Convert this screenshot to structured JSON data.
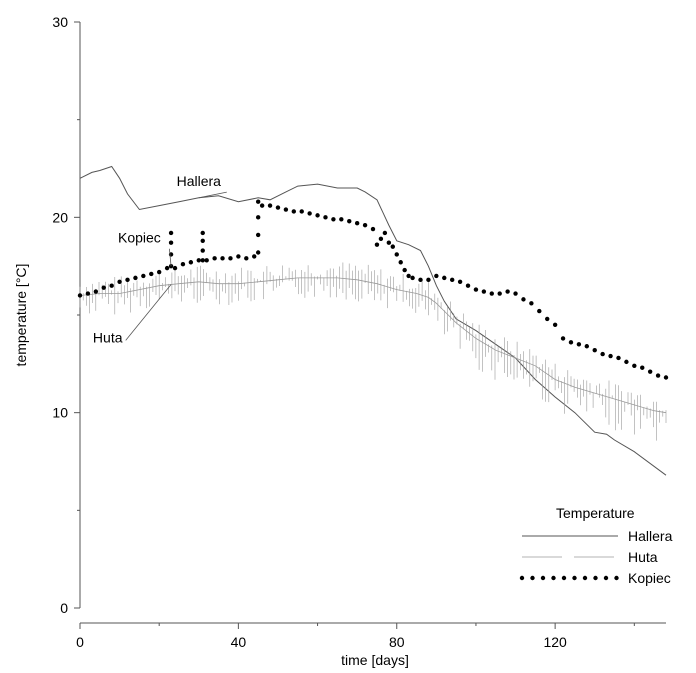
{
  "chart_data": {
    "type": "line",
    "title": "",
    "xlabel": "time [days]",
    "ylabel": "temperature [°C]",
    "xlim": [
      0,
      148
    ],
    "ylim": [
      0,
      30
    ],
    "x_ticks": [
      0,
      40,
      80,
      120
    ],
    "y_ticks": [
      0,
      10,
      20,
      30
    ],
    "grid": false,
    "legend": {
      "title": "Temperature",
      "position": "bottom-right",
      "entries": [
        "Hallera",
        "Huta",
        "Kopiec"
      ]
    },
    "annotations": [
      {
        "text": "Hallera",
        "series": "Hallera",
        "at": [
          30,
          21.6
        ]
      },
      {
        "text": "Kopiec",
        "series": "Kopiec",
        "at": [
          15,
          18.7
        ]
      },
      {
        "text": "Huta",
        "series": "Huta",
        "at": [
          7,
          13.6
        ]
      }
    ],
    "series": [
      {
        "name": "Hallera",
        "style": "thin-solid",
        "color": "#555555",
        "x": [
          0,
          3,
          5,
          8,
          10,
          12,
          15,
          20,
          25,
          30,
          35,
          40,
          45,
          48,
          52,
          55,
          60,
          65,
          70,
          72,
          75,
          78,
          80,
          83,
          86,
          88,
          90,
          92,
          95,
          100,
          105,
          110,
          115,
          120,
          125,
          130,
          133,
          135,
          140,
          148
        ],
        "y": [
          22.0,
          22.3,
          22.4,
          22.6,
          22.0,
          21.2,
          20.4,
          20.6,
          20.8,
          21.0,
          21.1,
          20.8,
          21.0,
          20.9,
          21.3,
          21.6,
          21.7,
          21.5,
          21.5,
          21.3,
          20.9,
          19.6,
          18.8,
          18.6,
          18.3,
          17.5,
          16.5,
          15.7,
          14.8,
          14.2,
          13.5,
          12.8,
          11.7,
          10.8,
          10.0,
          9.0,
          8.9,
          8.6,
          8.0,
          6.8
        ]
      },
      {
        "name": "Huta",
        "style": "thin-spiky",
        "color": "#9a9a9a",
        "x": [
          0,
          5,
          10,
          15,
          20,
          25,
          30,
          35,
          40,
          45,
          50,
          55,
          60,
          65,
          70,
          75,
          80,
          85,
          88,
          90,
          92,
          95,
          100,
          105,
          110,
          115,
          120,
          125,
          130,
          135,
          140,
          145,
          148
        ],
        "y": [
          16.0,
          16.1,
          16.1,
          16.3,
          16.5,
          16.6,
          16.7,
          16.6,
          16.6,
          16.7,
          16.8,
          16.9,
          16.9,
          16.9,
          16.8,
          16.6,
          16.3,
          16.1,
          15.9,
          15.6,
          15.2,
          14.6,
          13.8,
          13.2,
          12.8,
          12.4,
          11.7,
          11.3,
          11.0,
          10.7,
          10.4,
          10.1,
          10.0
        ]
      },
      {
        "name": "Kopiec",
        "style": "dotted",
        "color": "#000000",
        "x": [
          0,
          2,
          4,
          6,
          8,
          10,
          12,
          14,
          16,
          18,
          20,
          22,
          23,
          23,
          23,
          23,
          24,
          26,
          28,
          30,
          31,
          31,
          31,
          31,
          32,
          34,
          36,
          38,
          40,
          42,
          44,
          45,
          45,
          45,
          45,
          46,
          48,
          50,
          52,
          54,
          56,
          58,
          60,
          62,
          64,
          66,
          68,
          70,
          72,
          74,
          75,
          76,
          77,
          78,
          79,
          80,
          81,
          82,
          83,
          84,
          86,
          88,
          90,
          92,
          94,
          96,
          98,
          100,
          102,
          104,
          106,
          108,
          110,
          112,
          114,
          116,
          118,
          120,
          122,
          124,
          126,
          128,
          130,
          132,
          134,
          136,
          138,
          140,
          142,
          144,
          146,
          148
        ],
        "y": [
          16.0,
          16.1,
          16.2,
          16.4,
          16.5,
          16.7,
          16.8,
          16.9,
          17.0,
          17.1,
          17.2,
          17.4,
          17.5,
          18.1,
          18.7,
          19.2,
          17.4,
          17.6,
          17.7,
          17.8,
          18.3,
          18.8,
          19.2,
          17.8,
          17.8,
          17.9,
          17.9,
          17.9,
          18.0,
          17.9,
          18.0,
          18.2,
          19.1,
          20.0,
          20.8,
          20.6,
          20.6,
          20.5,
          20.4,
          20.3,
          20.3,
          20.2,
          20.1,
          20.0,
          19.9,
          19.9,
          19.8,
          19.7,
          19.6,
          19.4,
          18.6,
          18.9,
          19.2,
          18.7,
          18.5,
          18.1,
          17.7,
          17.3,
          17.0,
          16.9,
          16.8,
          16.8,
          17.0,
          16.9,
          16.8,
          16.7,
          16.5,
          16.3,
          16.2,
          16.1,
          16.1,
          16.2,
          16.1,
          15.8,
          15.6,
          15.2,
          14.8,
          14.5,
          13.8,
          13.6,
          13.5,
          13.4,
          13.2,
          13.0,
          12.9,
          12.8,
          12.6,
          12.4,
          12.3,
          12.1,
          11.9,
          11.8
        ]
      }
    ]
  }
}
